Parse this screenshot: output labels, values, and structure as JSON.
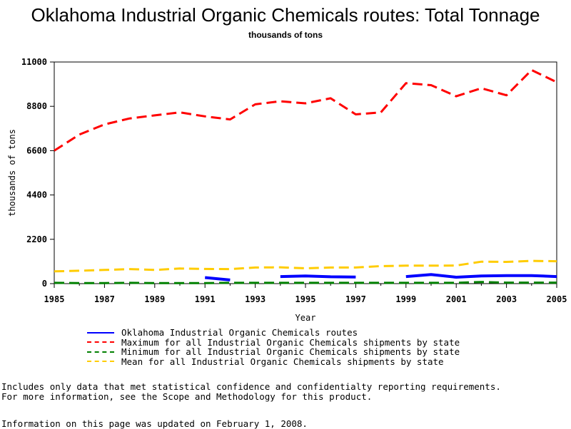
{
  "chart_data": {
    "type": "line",
    "title": "Oklahoma Industrial Organic Chemicals routes: Total Tonnage",
    "subtitle": "thousands of tons",
    "xlabel": "Year",
    "ylabel": "thousands of tons",
    "xlim": [
      1985,
      2005
    ],
    "ylim": [
      0,
      11000
    ],
    "x_ticks": [
      1985,
      1987,
      1989,
      1991,
      1993,
      1995,
      1997,
      1999,
      2001,
      2003,
      2005
    ],
    "y_ticks": [
      0,
      2200,
      4400,
      6600,
      8800,
      11000
    ],
    "x": [
      1985,
      1986,
      1987,
      1988,
      1989,
      1990,
      1991,
      1992,
      1993,
      1994,
      1995,
      1996,
      1997,
      1998,
      1999,
      2000,
      2001,
      2002,
      2003,
      2004,
      2005
    ],
    "series": [
      {
        "name": "Oklahoma Industrial Organic Chemicals routes",
        "color": "#0000ff",
        "dash": "solid",
        "values": [
          null,
          null,
          null,
          null,
          null,
          null,
          300,
          180,
          null,
          350,
          380,
          340,
          330,
          null,
          350,
          450,
          320,
          380,
          400,
          400,
          350
        ]
      },
      {
        "name": "Maximum for all Industrial Organic Chemicals shipments by state",
        "color": "#ff0000",
        "dash": "dashed",
        "values": [
          6600,
          7400,
          7900,
          8200,
          8350,
          8500,
          8300,
          8150,
          8900,
          9050,
          8950,
          9200,
          8400,
          8500,
          9950,
          9850,
          9300,
          9700,
          9350,
          10600,
          10000
        ]
      },
      {
        "name": "Minimum for all Industrial Organic Chemicals shipments by state",
        "color": "#008000",
        "dash": "dashed",
        "values": [
          40,
          30,
          30,
          40,
          30,
          30,
          30,
          40,
          40,
          40,
          40,
          40,
          40,
          40,
          40,
          40,
          40,
          80,
          50,
          50,
          50
        ]
      },
      {
        "name": "Mean for all Industrial Organic Chemicals shipments by state",
        "color": "#ffcc00",
        "dash": "dashed",
        "values": [
          610,
          640,
          680,
          720,
          680,
          750,
          730,
          720,
          800,
          810,
          760,
          800,
          800,
          870,
          890,
          890,
          900,
          1090,
          1080,
          1130,
          1110
        ]
      }
    ]
  },
  "footnotes": {
    "line1": "Includes only data that met statistical confidence and confidentialty reporting requirements.",
    "line2": "For more information, see the Scope and Methodology for this product.",
    "updated": "Information on this page was updated on February 1, 2008."
  }
}
